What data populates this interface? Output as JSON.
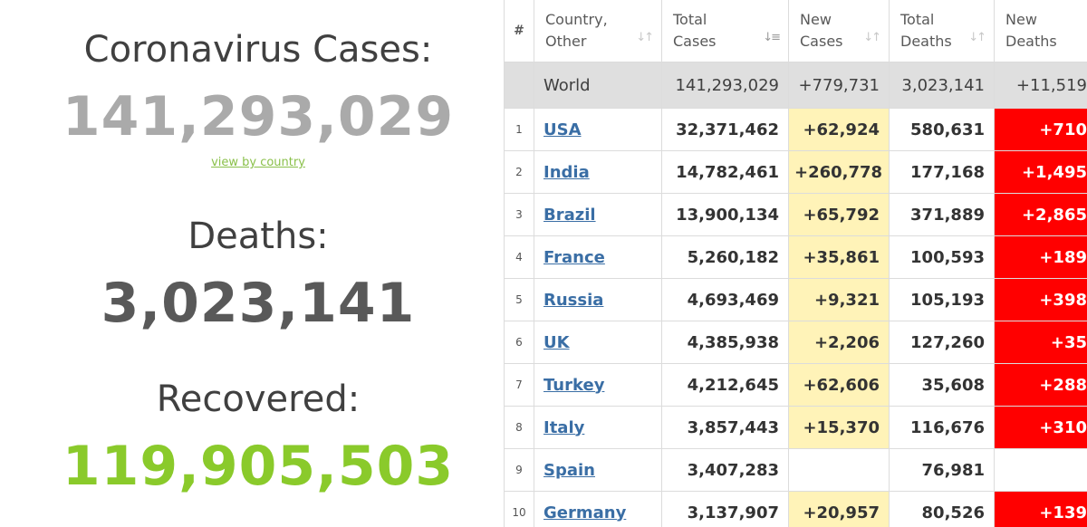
{
  "summary": {
    "cases_label": "Coronavirus Cases:",
    "cases_value": "141,293,029",
    "view_by_country": "view by country",
    "deaths_label": "Deaths:",
    "deaths_value": "3,023,141",
    "recovered_label": "Recovered:",
    "recovered_value": "119,905,503"
  },
  "colors": {
    "cases_value": "#aaaaaa",
    "deaths_value": "#595959",
    "recovered_value": "#8ACA2B",
    "new_cases_bg": "#fff3b8",
    "new_deaths_bg": "#ff0000",
    "world_row_bg": "#dfdfdf",
    "country_link": "#3a6ea5"
  },
  "table": {
    "headers": {
      "num": "#",
      "country_1": "Country,",
      "country_2": "Other",
      "total_cases_1": "Total",
      "total_cases_2": "Cases",
      "new_cases_1": "New",
      "new_cases_2": "Cases",
      "total_deaths_1": "Total",
      "total_deaths_2": "Deaths",
      "new_deaths_1": "New",
      "new_deaths_2": "Deaths"
    },
    "world": {
      "country": "World",
      "total_cases": "141,293,029",
      "new_cases": "+779,731",
      "total_deaths": "3,023,141",
      "new_deaths": "+11,519"
    },
    "rows": [
      {
        "num": "1",
        "country": "USA",
        "total_cases": "32,371,462",
        "new_cases": "+62,924",
        "total_deaths": "580,631",
        "new_deaths": "+710"
      },
      {
        "num": "2",
        "country": "India",
        "total_cases": "14,782,461",
        "new_cases": "+260,778",
        "total_deaths": "177,168",
        "new_deaths": "+1,495"
      },
      {
        "num": "3",
        "country": "Brazil",
        "total_cases": "13,900,134",
        "new_cases": "+65,792",
        "total_deaths": "371,889",
        "new_deaths": "+2,865"
      },
      {
        "num": "4",
        "country": "France",
        "total_cases": "5,260,182",
        "new_cases": "+35,861",
        "total_deaths": "100,593",
        "new_deaths": "+189"
      },
      {
        "num": "5",
        "country": "Russia",
        "total_cases": "4,693,469",
        "new_cases": "+9,321",
        "total_deaths": "105,193",
        "new_deaths": "+398"
      },
      {
        "num": "6",
        "country": "UK",
        "total_cases": "4,385,938",
        "new_cases": "+2,206",
        "total_deaths": "127,260",
        "new_deaths": "+35"
      },
      {
        "num": "7",
        "country": "Turkey",
        "total_cases": "4,212,645",
        "new_cases": "+62,606",
        "total_deaths": "35,608",
        "new_deaths": "+288"
      },
      {
        "num": "8",
        "country": "Italy",
        "total_cases": "3,857,443",
        "new_cases": "+15,370",
        "total_deaths": "116,676",
        "new_deaths": "+310"
      },
      {
        "num": "9",
        "country": "Spain",
        "total_cases": "3,407,283",
        "new_cases": "",
        "total_deaths": "76,981",
        "new_deaths": ""
      },
      {
        "num": "10",
        "country": "Germany",
        "total_cases": "3,137,907",
        "new_cases": "+20,957",
        "total_deaths": "80,526",
        "new_deaths": "+139"
      }
    ]
  }
}
